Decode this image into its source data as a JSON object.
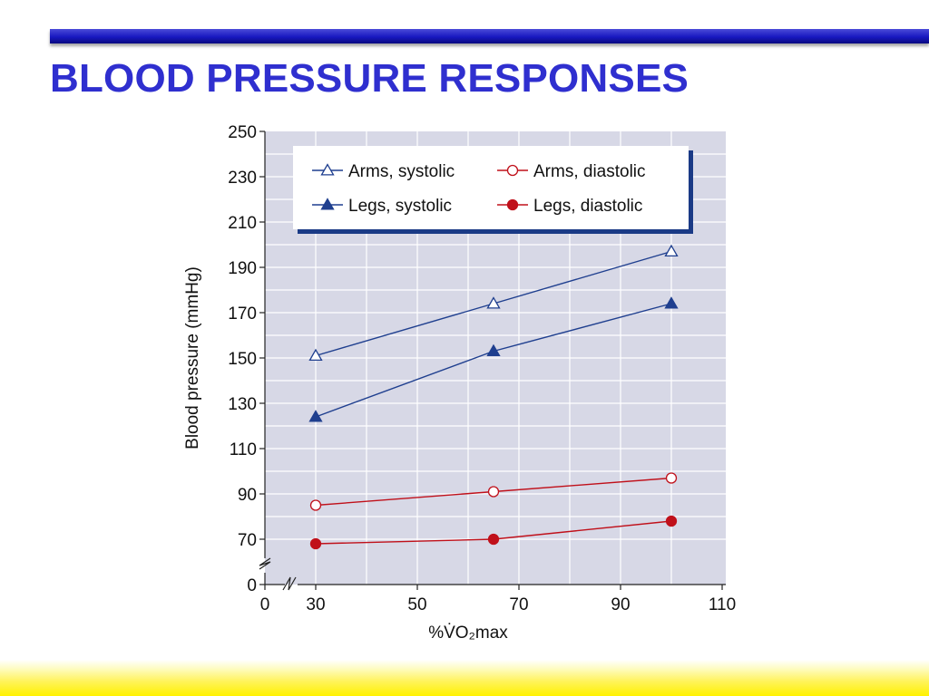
{
  "slide": {
    "title": "BLOOD PRESSURE RESPONSES"
  },
  "colors": {
    "title": "#2f2fcf",
    "top_bar": "#1818c0",
    "bottom_band": "#fff200",
    "plot_background": "#d7d8e6",
    "systolic_series": "#1f3f8f",
    "diastolic_series": "#c0101a"
  },
  "chart_data": {
    "type": "line",
    "title": "",
    "xlabel": "%V̇O₂max",
    "ylabel": "Blood pressure (mmHg)",
    "x_ticks": [
      "0",
      "30",
      "50",
      "70",
      "90",
      "110"
    ],
    "y_ticks": [
      "0",
      "70",
      "90",
      "110",
      "130",
      "150",
      "170",
      "190",
      "210",
      "230",
      "250"
    ],
    "xlim": [
      20,
      110
    ],
    "ylim": [
      60,
      250
    ],
    "axis_breaks": [
      "x",
      "y"
    ],
    "grid": true,
    "legend_position": "top",
    "series": [
      {
        "name": "Arms, systolic",
        "marker": "open-triangle",
        "color": "#1f3f8f",
        "x": [
          30,
          65,
          100
        ],
        "y": [
          151,
          174,
          197
        ]
      },
      {
        "name": "Arms, diastolic",
        "marker": "open-circle",
        "color": "#c0101a",
        "x": [
          30,
          65,
          100
        ],
        "y": [
          85,
          91,
          97
        ]
      },
      {
        "name": "Legs, systolic",
        "marker": "filled-triangle",
        "color": "#1f3f8f",
        "x": [
          30,
          65,
          100
        ],
        "y": [
          124,
          153,
          174
        ]
      },
      {
        "name": "Legs, diastolic",
        "marker": "filled-circle",
        "color": "#c0101a",
        "x": [
          30,
          65,
          100
        ],
        "y": [
          68,
          70,
          78
        ]
      }
    ]
  }
}
